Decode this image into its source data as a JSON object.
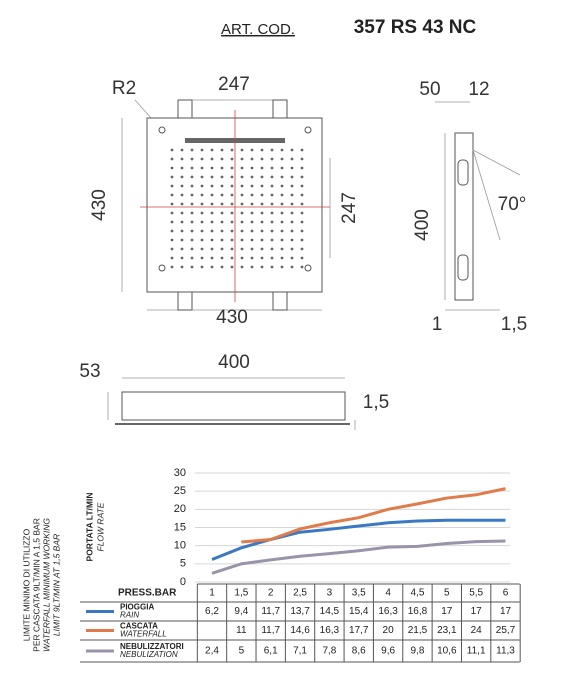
{
  "header": {
    "label": "ART. COD.",
    "code": "357 RS 43 NC"
  },
  "drawing": {
    "front": [
      "R2",
      "247",
      "430",
      "247",
      "430"
    ],
    "side": [
      "50",
      "12",
      "400",
      "70°",
      "1",
      "1,5"
    ],
    "bottom": [
      "53",
      "400",
      "1,5"
    ]
  },
  "note": [
    "LIMITE MINIMO DI UTILIZZO",
    "PER CASCATA 9LT/MIN A 1,5 BAR",
    "WATERFALL MINIMUM WORKING",
    "LIMIT 9LT/MIN AT 1,5 BAR"
  ],
  "chart_data": {
    "type": "line",
    "y_label": "PORTATA LT/MIN",
    "y_label_en": "FLOW RATE",
    "x_label": "PRESS.BAR",
    "categories": [
      "1",
      "1,5",
      "2",
      "2,5",
      "3",
      "3,5",
      "4",
      "4,5",
      "5",
      "5,5",
      "6"
    ],
    "ylim": [
      0,
      30
    ],
    "yticks": [
      0,
      5,
      10,
      15,
      20,
      25,
      30
    ],
    "grid": true,
    "series": [
      {
        "name": "PIOGGIA",
        "name_en": "RAIN",
        "color": "#3b78c3",
        "values": [
          6.2,
          9.4,
          11.7,
          13.7,
          14.5,
          15.4,
          16.3,
          16.8,
          17,
          17,
          17
        ],
        "value_labels": [
          "6,2",
          "9,4",
          "11,7",
          "13,7",
          "14,5",
          "15,4",
          "16,3",
          "16,8",
          "17",
          "17",
          "17"
        ]
      },
      {
        "name": "CASCATA",
        "name_en": "WATERFALL",
        "color": "#e07b4c",
        "values": [
          null,
          11,
          11.7,
          14.6,
          16.3,
          17.7,
          20,
          21.5,
          23.1,
          24,
          25.7
        ],
        "value_labels": [
          null,
          "11",
          "11,7",
          "14,6",
          "16,3",
          "17,7",
          "20",
          "21,5",
          "23,1",
          "24",
          "25,7"
        ]
      },
      {
        "name": "NEBULIZZATORI",
        "name_en": "NEBULIZATION",
        "color": "#9a93aa",
        "values": [
          2.4,
          5,
          6.1,
          7.1,
          7.8,
          8.6,
          9.6,
          9.8,
          10.6,
          11.1,
          11.3
        ],
        "value_labels": [
          "2,4",
          "5",
          "6,1",
          "7,1",
          "7,8",
          "8,6",
          "9,6",
          "9,8",
          "10,6",
          "11,1",
          "11,3"
        ]
      }
    ]
  }
}
